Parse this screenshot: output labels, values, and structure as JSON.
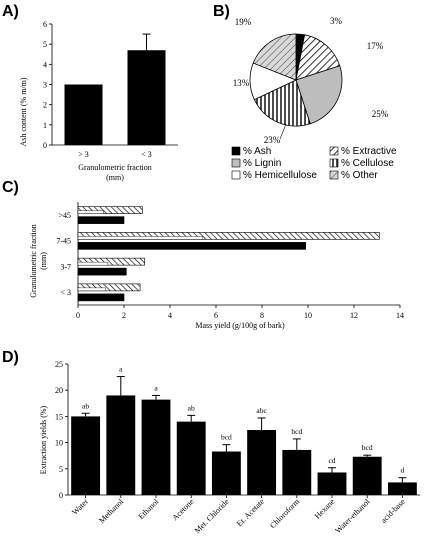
{
  "panels": {
    "a": "A)",
    "b": "B)",
    "c": "C)",
    "d": "D)"
  },
  "chart_data": [
    {
      "type": "bar",
      "categories": [
        "> 3",
        "< 3"
      ],
      "values": [
        3.0,
        4.7
      ],
      "errors": [
        0,
        0.8
      ],
      "ylabel": "Ash content (% m/m)",
      "xlabel": "Granulometric fraction (mm)",
      "xlabel_lines": [
        "Granulometric fraction",
        "(mm)"
      ],
      "ylim": [
        0,
        6
      ],
      "yticks": [
        0,
        1,
        2,
        3,
        4,
        5,
        6
      ],
      "bar_color": "#000000"
    },
    {
      "type": "pie",
      "slices": [
        {
          "name": "% Ash",
          "value": 3,
          "label": "3%",
          "color": "#000000",
          "pattern": "solid"
        },
        {
          "name": "% Extractive",
          "value": 17,
          "label": "17%",
          "color": "#ffffff",
          "pattern": "diag"
        },
        {
          "name": "% Lignin",
          "value": 25,
          "label": "25%",
          "color": "#bdbdbd",
          "pattern": "solid"
        },
        {
          "name": "% Cellulose",
          "value": 23,
          "label": "23%",
          "color": "#ffffff",
          "pattern": "vert"
        },
        {
          "name": "% Hemicellulose",
          "value": 13,
          "label": "13%",
          "color": "#ffffff",
          "pattern": "solid"
        },
        {
          "name": "% Other",
          "value": 19,
          "label": "19%",
          "color": "#e0e0e0",
          "pattern": "diag"
        }
      ],
      "legend_placement": "bottom"
    },
    {
      "type": "bar",
      "orientation": "horizontal",
      "categories": [
        ">45",
        "7-45",
        "3-7",
        "< 3"
      ],
      "series": [
        {
          "values": [
            2.8,
            13.1,
            2.9,
            2.7
          ],
          "errors": [
            0,
            0,
            0,
            0
          ],
          "pattern": "hatched"
        },
        {
          "values": [
            1.1,
            5.4,
            1.3,
            1.2
          ],
          "errors": [
            0,
            0,
            0,
            0
          ],
          "pattern": "white"
        },
        {
          "values": [
            2.0,
            9.9,
            2.1,
            2.0
          ],
          "errors": [
            0,
            0,
            0,
            0
          ],
          "pattern": "black"
        }
      ],
      "xlabel": "Mass yield  (g/100g of bark)",
      "ylabel": "Granulometric fraction (mm)",
      "ylabel_lines": [
        "Granulometric fraction",
        "(mm)"
      ],
      "xlim": [
        0,
        14
      ],
      "xticks": [
        0,
        2,
        4,
        6,
        8,
        10,
        12,
        14
      ]
    },
    {
      "type": "bar",
      "categories": [
        "Water",
        "Methanol",
        "Ethanol",
        "Acetone",
        "Met. Chloride",
        "Et. Acetate",
        "Chloroform",
        "Hexane",
        "Water-ethanol",
        "acid-base"
      ],
      "values": [
        15.0,
        19.0,
        18.2,
        14.0,
        8.3,
        12.4,
        8.6,
        4.3,
        7.3,
        2.4
      ],
      "errors": [
        0.6,
        3.6,
        0.8,
        1.2,
        1.3,
        2.3,
        2.1,
        0.9,
        0.3,
        0.9
      ],
      "letters": [
        "ab",
        "a",
        "a",
        "ab",
        "bcd",
        "abc",
        "bcd",
        "cd",
        "bcd",
        "d"
      ],
      "ylabel": "Extraction yields (%)",
      "ylim": [
        0,
        25
      ],
      "yticks": [
        0,
        5,
        10,
        15,
        20,
        25
      ],
      "bar_color": "#000000"
    }
  ]
}
